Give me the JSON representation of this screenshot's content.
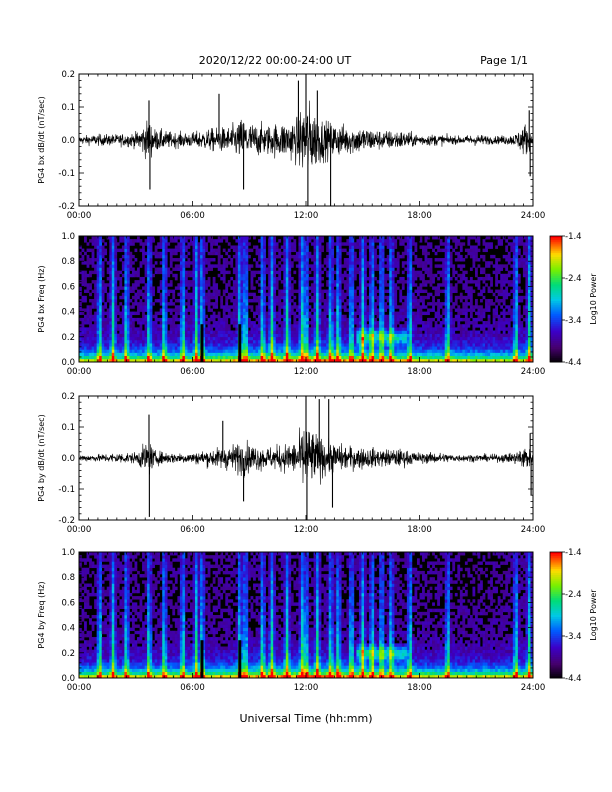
{
  "header": {
    "date_range": "2020/12/22  00:00-24:00 UT",
    "page": "Page 1/1"
  },
  "xlabel": "Universal Time (hh:mm)",
  "chart_data": [
    {
      "type": "line",
      "ylabel": "PG4 bx dB/dt (nT/sec)",
      "xlim": [
        0,
        24
      ],
      "ylim": [
        -0.2,
        0.2
      ],
      "x_ticks": [
        "00:00",
        "06:00",
        "12:00",
        "18:00",
        "24:00"
      ],
      "y_ticks": [
        "-0.2",
        "-0.1",
        "0.0",
        "0.1",
        "0.2"
      ],
      "color": "#000000",
      "envelope": {
        "x": [
          0,
          1,
          2,
          3,
          3.7,
          4,
          5,
          6,
          7,
          8,
          8.7,
          9,
          10,
          11,
          11.5,
          12,
          12.5,
          13,
          14,
          15,
          16,
          17,
          18,
          19,
          20,
          21,
          22,
          23,
          23.6,
          24
        ],
        "y": [
          0.02,
          0.03,
          0.03,
          0.04,
          0.11,
          0.06,
          0.04,
          0.04,
          0.06,
          0.07,
          0.12,
          0.09,
          0.08,
          0.1,
          0.12,
          0.22,
          0.15,
          0.1,
          0.08,
          0.07,
          0.05,
          0.05,
          0.03,
          0.03,
          0.02,
          0.03,
          0.02,
          0.03,
          0.09,
          0.02
        ]
      },
      "spikes": [
        {
          "x": 3.7,
          "y": 0.12
        },
        {
          "x": 3.75,
          "y": -0.15
        },
        {
          "x": 7.4,
          "y": 0.14
        },
        {
          "x": 8.7,
          "y": -0.15
        },
        {
          "x": 11.6,
          "y": 0.18
        },
        {
          "x": 12.0,
          "y": 0.22
        },
        {
          "x": 12.1,
          "y": -0.2
        },
        {
          "x": 12.6,
          "y": 0.15
        },
        {
          "x": 13.3,
          "y": -0.2
        },
        {
          "x": 23.8,
          "y": 0.09
        },
        {
          "x": 23.85,
          "y": -0.11
        }
      ]
    },
    {
      "type": "heatmap",
      "ylabel": "PG4 bx Freq (Hz)",
      "xlim": [
        0,
        24
      ],
      "ylim": [
        0,
        1.0
      ],
      "x_ticks": [
        "00:00",
        "06:00",
        "12:00",
        "18:00",
        "24:00"
      ],
      "y_ticks": [
        "0.0",
        "0.2",
        "0.4",
        "0.6",
        "0.8",
        "1.0"
      ],
      "colorbar": {
        "label": "Log10 Power",
        "range": [
          -4.4,
          -1.4
        ],
        "ticks": [
          "-1.4",
          "-2.4",
          "-3.4",
          "-4.4"
        ]
      },
      "vertical_streaks": [
        1.1,
        1.8,
        2.5,
        3.7,
        4.5,
        5.5,
        6.2,
        6.5,
        8.5,
        8.8,
        9.7,
        10.2,
        11.0,
        11.8,
        12.0,
        12.6,
        13.3,
        13.7,
        14.4,
        15.0,
        15.5,
        16.0,
        16.5,
        17.5,
        19.5,
        23.1,
        23.8
      ],
      "data_gaps": [
        6.5,
        8.5
      ],
      "band_feature": {
        "x_start": 14.7,
        "x_end": 17.3,
        "freq": 0.2
      }
    },
    {
      "type": "line",
      "ylabel": "PG4 by dB/dt (nT/sec)",
      "xlim": [
        0,
        24
      ],
      "ylim": [
        -0.2,
        0.2
      ],
      "x_ticks": [
        "00:00",
        "06:00",
        "12:00",
        "18:00",
        "24:00"
      ],
      "y_ticks": [
        "-0.2",
        "-0.1",
        "0.0",
        "0.1",
        "0.2"
      ],
      "color": "#000000",
      "envelope": {
        "x": [
          0,
          1,
          2,
          3,
          3.7,
          4,
          5,
          6,
          7,
          8,
          8.7,
          9,
          10,
          11,
          11.5,
          12,
          12.5,
          13,
          14,
          15,
          16,
          17,
          18,
          19,
          20,
          21,
          22,
          23,
          23.6,
          24
        ],
        "y": [
          0.02,
          0.02,
          0.03,
          0.03,
          0.1,
          0.04,
          0.03,
          0.03,
          0.05,
          0.07,
          0.1,
          0.08,
          0.06,
          0.08,
          0.1,
          0.2,
          0.14,
          0.1,
          0.07,
          0.06,
          0.05,
          0.05,
          0.03,
          0.03,
          0.02,
          0.02,
          0.02,
          0.03,
          0.08,
          0.02
        ]
      },
      "spikes": [
        {
          "x": 3.7,
          "y": 0.14
        },
        {
          "x": 3.72,
          "y": -0.19
        },
        {
          "x": 7.6,
          "y": 0.12
        },
        {
          "x": 8.7,
          "y": -0.14
        },
        {
          "x": 12.0,
          "y": 0.2
        },
        {
          "x": 12.05,
          "y": -0.2
        },
        {
          "x": 12.7,
          "y": 0.19
        },
        {
          "x": 13.2,
          "y": 0.19
        },
        {
          "x": 13.4,
          "y": -0.16
        },
        {
          "x": 23.85,
          "y": 0.08
        },
        {
          "x": 23.9,
          "y": -0.12
        }
      ]
    },
    {
      "type": "heatmap",
      "ylabel": "PG4 by Freq (Hz)",
      "xlim": [
        0,
        24
      ],
      "ylim": [
        0,
        1.0
      ],
      "x_ticks": [
        "00:00",
        "06:00",
        "12:00",
        "18:00",
        "24:00"
      ],
      "y_ticks": [
        "0.0",
        "0.2",
        "0.4",
        "0.6",
        "0.8",
        "1.0"
      ],
      "colorbar": {
        "label": "Log10 Power",
        "range": [
          -4.4,
          -1.4
        ],
        "ticks": [
          "-1.4",
          "-2.4",
          "-3.4",
          "-4.4"
        ]
      },
      "vertical_streaks": [
        1.1,
        1.8,
        2.5,
        3.7,
        4.5,
        5.5,
        6.2,
        6.5,
        8.5,
        8.8,
        9.7,
        10.2,
        11.0,
        11.8,
        12.0,
        12.6,
        13.3,
        13.7,
        14.4,
        15.0,
        15.5,
        16.0,
        16.5,
        17.5,
        19.5,
        23.1,
        23.8
      ],
      "data_gaps": [
        6.5,
        8.5
      ],
      "band_feature": {
        "x_start": 14.7,
        "x_end": 17.3,
        "freq": 0.2
      }
    }
  ]
}
